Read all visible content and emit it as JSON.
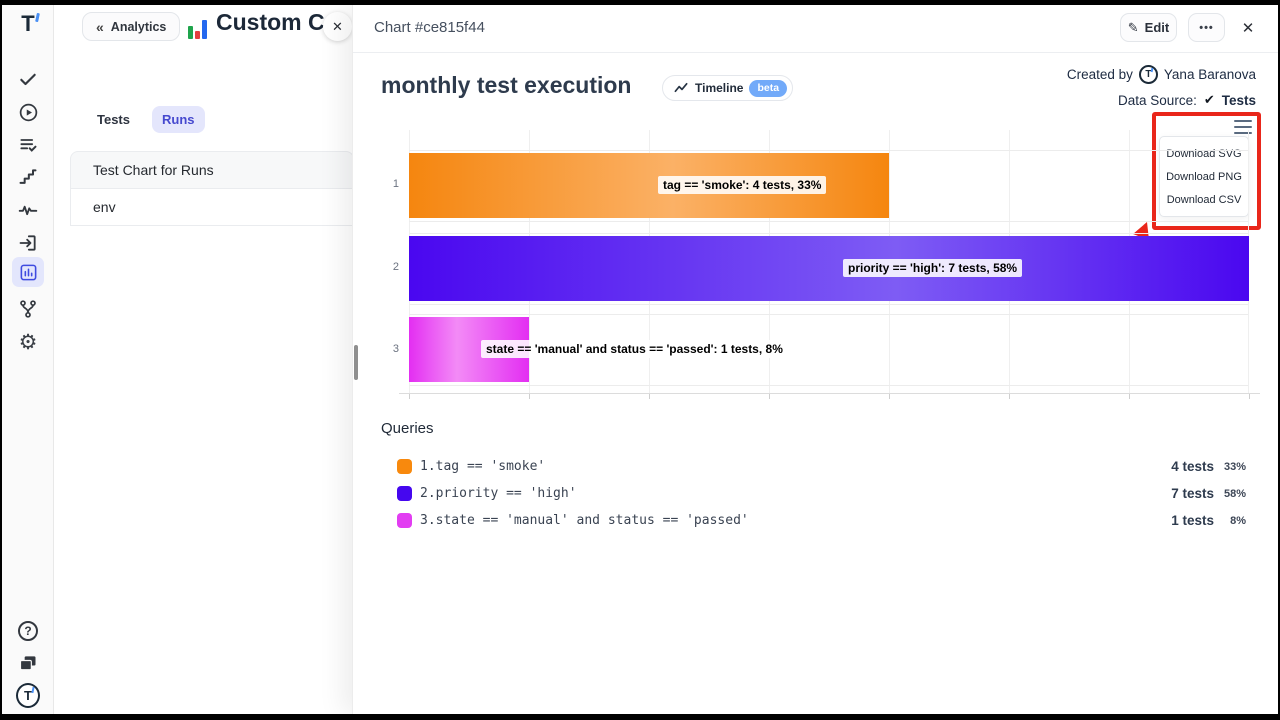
{
  "icons": {
    "back": "«",
    "close": "✕",
    "edit": "✎",
    "more": "•••",
    "check": "✔",
    "gear": "⚙",
    "help": "?",
    "logo_letter": "T"
  },
  "app": {
    "sidebar": {
      "icon_names": [
        "logo",
        "tests-check",
        "runs-play",
        "test-plans-list",
        "steps",
        "pulse",
        "import",
        "analytics-chart",
        "branches",
        "settings",
        "help",
        "docs",
        "profile"
      ],
      "active_icon": "analytics-chart"
    },
    "panel": {
      "back_button": "Analytics",
      "title": "Custom C",
      "tabs": [
        {
          "label": "Tests",
          "active": false
        },
        {
          "label": "Runs",
          "active": true
        }
      ],
      "list": [
        "Test Chart for Runs",
        "env"
      ]
    },
    "modal": {
      "header": {
        "title": "Chart #ce815f44",
        "edit_label": "Edit"
      },
      "chart_title": "monthly test execution",
      "timeline_label": "Timeline",
      "beta_label": "beta",
      "beta_color": "#72aaf9",
      "created_by_label": "Created by",
      "author": "Yana Baranova",
      "data_source_label": "Data Source:",
      "data_source_value": "Tests",
      "download_menu": [
        "Download SVG",
        "Download PNG",
        "Download CSV"
      ],
      "annotation_color": "#e9261a"
    },
    "queries": {
      "heading": "Queries",
      "rows": [
        {
          "index": "1.",
          "query": "tag == 'smoke'",
          "tests": "4 tests",
          "percent": "33%",
          "color": "#f8890d"
        },
        {
          "index": "2.",
          "query": "priority == 'high'",
          "tests": "7 tests",
          "percent": "58%",
          "color": "#4507ef"
        },
        {
          "index": "3.",
          "query": "state == 'manual' and status == 'passed'",
          "tests": "1 tests",
          "percent": "8%",
          "color": "#e23df2"
        }
      ]
    }
  },
  "chart_data": {
    "type": "bar",
    "orientation": "horizontal",
    "title": "monthly test execution",
    "categories": [
      "1",
      "2",
      "3"
    ],
    "values": [
      4,
      7,
      1
    ],
    "percentages": [
      33,
      58,
      8
    ],
    "xlim": [
      0,
      7
    ],
    "grid": true,
    "bar_labels": [
      "tag == 'smoke': 4 tests, 33%",
      "priority == 'high': 7 tests, 58%",
      "state == 'manual' and status == 'passed': 1 tests, 8%"
    ],
    "series_colors": [
      {
        "edge": "#f5860f",
        "mid": "#fbb166",
        "mid_pos": 55
      },
      {
        "edge": "#4a07f0",
        "mid": "#7e5cf4",
        "mid_pos": 58
      },
      {
        "edge": "#e32ef2",
        "mid": "#f38bf6",
        "mid_pos": 40
      }
    ]
  }
}
